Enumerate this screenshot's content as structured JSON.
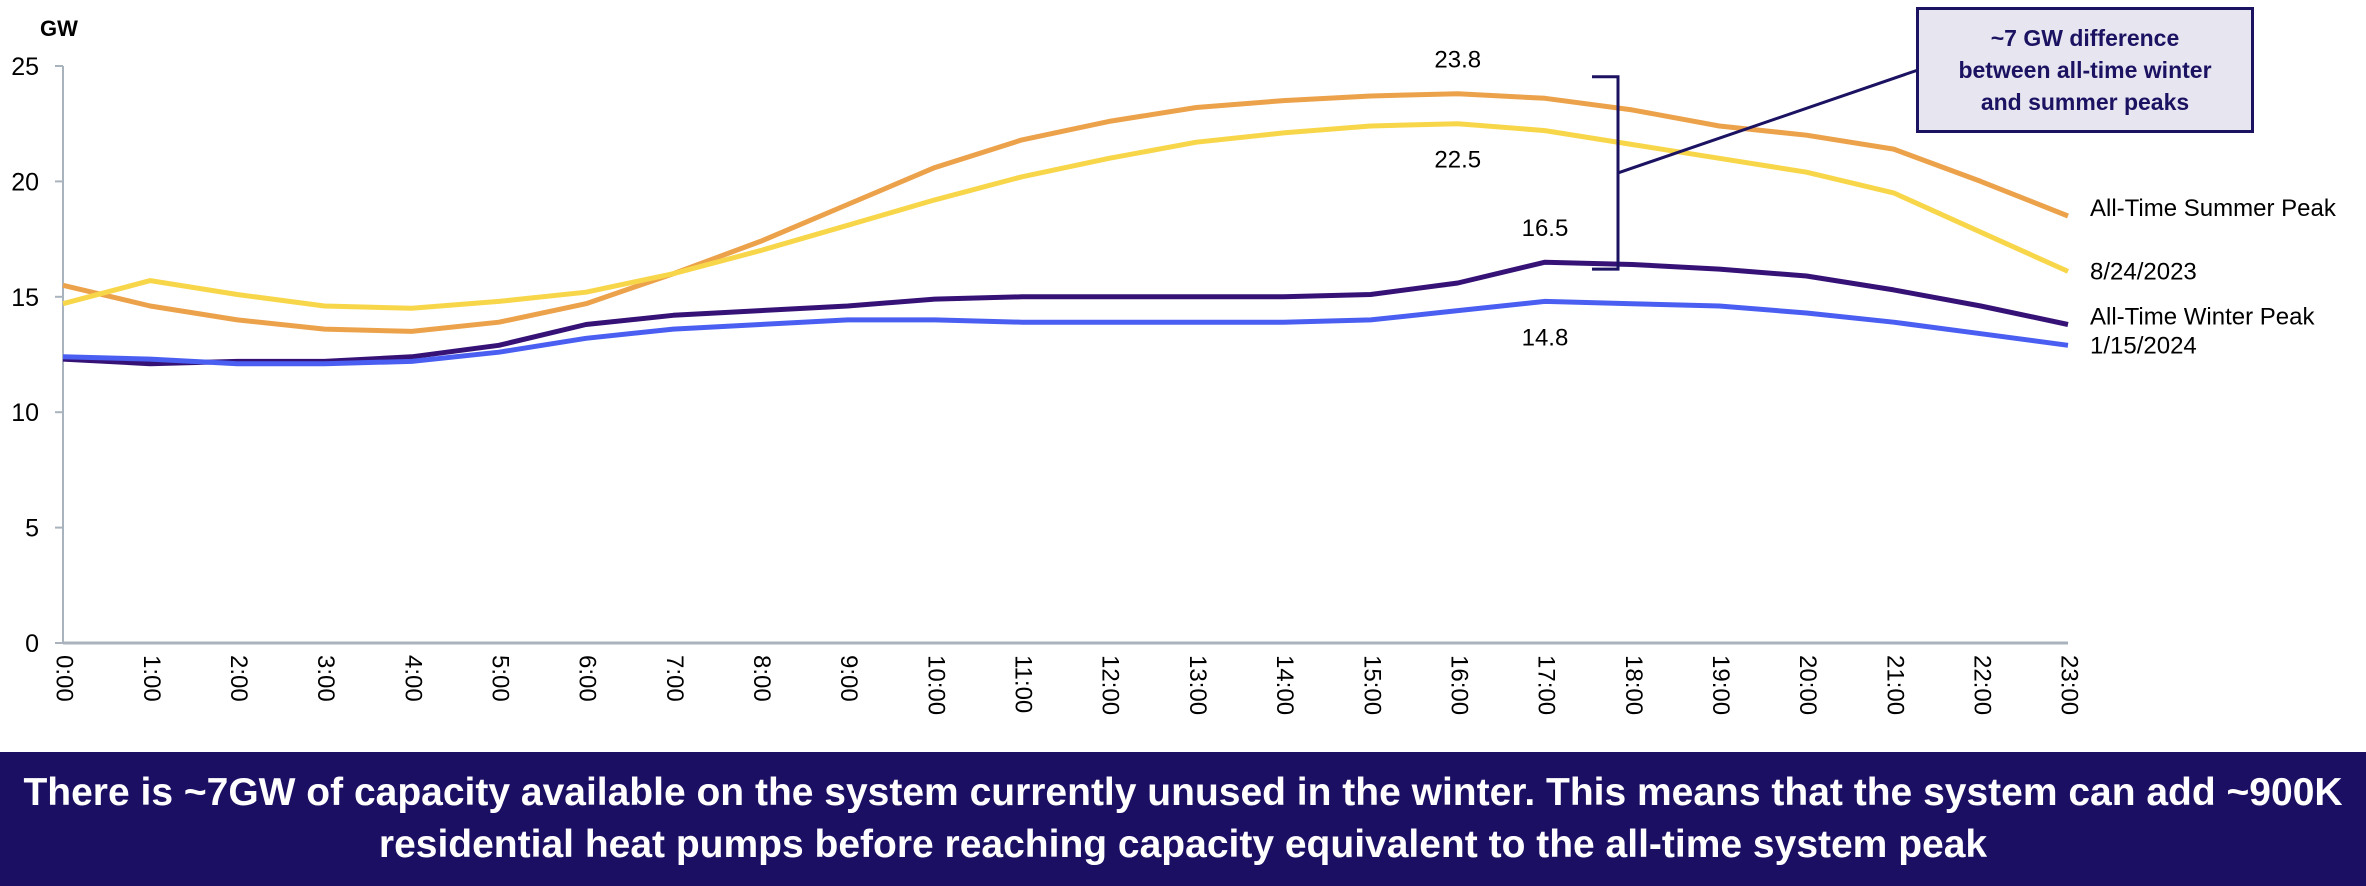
{
  "chart_data": {
    "type": "line",
    "title": "",
    "ylabel": "GW",
    "xlabel": "",
    "ylim": [
      0,
      25
    ],
    "yticks": [
      0,
      5,
      10,
      15,
      20,
      25
    ],
    "grid": false,
    "legend": "right, inline labels at line ends",
    "x": [
      "0:00",
      "1:00",
      "2:00",
      "3:00",
      "4:00",
      "5:00",
      "6:00",
      "7:00",
      "8:00",
      "9:00",
      "10:00",
      "11:00",
      "12:00",
      "13:00",
      "14:00",
      "15:00",
      "16:00",
      "17:00",
      "18:00",
      "19:00",
      "20:00",
      "21:00",
      "22:00",
      "23:00"
    ],
    "series": [
      {
        "name": "All-Time Summer Peak",
        "color": "#eca24a",
        "values": [
          15.5,
          14.6,
          14.0,
          13.6,
          13.5,
          13.9,
          14.7,
          16.0,
          17.4,
          19.0,
          20.6,
          21.8,
          22.6,
          23.2,
          23.5,
          23.7,
          23.8,
          23.6,
          23.1,
          22.4,
          22.0,
          21.4,
          20.0,
          18.5
        ]
      },
      {
        "name": "8/24/2023",
        "color": "#f8d64a",
        "values": [
          14.7,
          15.7,
          15.1,
          14.6,
          14.5,
          14.8,
          15.2,
          16.0,
          17.0,
          18.1,
          19.2,
          20.2,
          21.0,
          21.7,
          22.1,
          22.4,
          22.5,
          22.2,
          21.6,
          21.0,
          20.4,
          19.5,
          17.8,
          16.1
        ]
      },
      {
        "name": "All-Time Winter Peak",
        "color": "#361277",
        "values": [
          12.3,
          12.1,
          12.2,
          12.2,
          12.4,
          12.9,
          13.8,
          14.2,
          14.4,
          14.6,
          14.9,
          15.0,
          15.0,
          15.0,
          15.0,
          15.1,
          15.6,
          16.5,
          16.4,
          16.2,
          15.9,
          15.3,
          14.6,
          13.8
        ]
      },
      {
        "name": "1/15/2024",
        "color": "#4a5ff2",
        "values": [
          12.4,
          12.3,
          12.1,
          12.1,
          12.2,
          12.6,
          13.2,
          13.6,
          13.8,
          14.0,
          14.0,
          13.9,
          13.9,
          13.9,
          13.9,
          14.0,
          14.4,
          14.8,
          14.7,
          14.6,
          14.3,
          13.9,
          13.4,
          12.9
        ]
      }
    ],
    "data_labels": [
      {
        "text": "23.8",
        "x": "16:00",
        "y": 23.8,
        "series": "All-Time Summer Peak",
        "position": "above"
      },
      {
        "text": "22.5",
        "x": "16:00",
        "y": 22.5,
        "series": "8/24/2023",
        "position": "below"
      },
      {
        "text": "16.5",
        "x": "17:00",
        "y": 16.5,
        "series": "All-Time Winter Peak",
        "position": "above"
      },
      {
        "text": "14.8",
        "x": "17:00",
        "y": 14.8,
        "series": "1/15/2024",
        "position": "below"
      }
    ],
    "annotations": [
      {
        "type": "bracket",
        "from": 23.8,
        "to": 16.5,
        "text": "~7 GW difference\nbetween all-time winter\nand summer peaks"
      }
    ]
  },
  "annotation_text": "~7 GW difference\nbetween all-time winter\nand summer peaks",
  "unit_label": "GW",
  "banner_text": "There is ~7GW of capacity available on the system currently unused in the winter. This means that the system can add ~900K residential heat pumps before reaching capacity equivalent to the all-time system peak",
  "colors": {
    "banner_bg": "#1b0f63",
    "annotation_border": "#1b1262",
    "annotation_bg": "#e6e5f0",
    "axis": "#a8b3bd"
  }
}
